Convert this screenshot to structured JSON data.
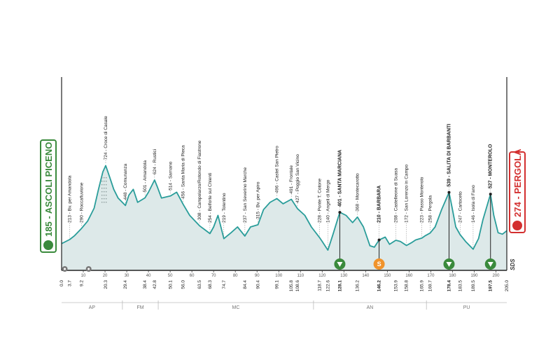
{
  "chart_data": {
    "type": "area",
    "title": "",
    "xlabel": "",
    "ylabel": "",
    "total_km": 205.0,
    "xlim": [
      0,
      205
    ],
    "ylim": [
      0,
      900
    ],
    "grid": false,
    "start": {
      "altitude": "185",
      "name": "ASCOLI PICENO"
    },
    "finish": {
      "altitude": "274",
      "name": "PERGOLA"
    },
    "axis_ticks": [
      10,
      20,
      30,
      40,
      50,
      60,
      70,
      80,
      90,
      100,
      110,
      120,
      130,
      140,
      150,
      160,
      170,
      180,
      190,
      200
    ],
    "km_markers": [
      "0.0",
      "3.7",
      "9.2",
      "20.3",
      "29.4",
      "38.4",
      "42.8",
      "50.1",
      "56.0",
      "63.5",
      "68.3",
      "74.7",
      "84.4",
      "90.4",
      "99.1",
      "105.8",
      "108.6",
      "118.7",
      "122.6",
      "128.1",
      "136.2",
      "146.2",
      "153.9",
      "158.8",
      "165.9",
      "169.7",
      "178.4",
      "183.5",
      "189.5",
      "197.5",
      "205.0"
    ],
    "km_markers_bold": [
      "128.1",
      "146.2",
      "178.4",
      "197.5"
    ],
    "waypoints": [
      {
        "km": 3.7,
        "label": "213 - Bv. per Amandola"
      },
      {
        "km": 9.2,
        "label": "290 - Roccafluvione"
      },
      {
        "km": 20.3,
        "label": "724 - Croce di Casale"
      },
      {
        "km": 29.4,
        "label": "448 - Comunanza"
      },
      {
        "km": 38.4,
        "label": "501 - Amandola"
      },
      {
        "km": 42.8,
        "label": "624 - Rustici"
      },
      {
        "km": 50.1,
        "label": "514 - Sarnano"
      },
      {
        "km": 56.0,
        "label": "456 - Santa Maria di Pieca"
      },
      {
        "km": 63.5,
        "label": "308 - Campolarzo/Rotondo di Fiastrone"
      },
      {
        "km": 68.3,
        "label": "254 - Belforte sul Chienti"
      },
      {
        "km": 74.7,
        "label": "219 - Tolentino"
      },
      {
        "km": 84.4,
        "label": "237 - San Severino Marche"
      },
      {
        "km": 90.4,
        "label": "315 - Bv. per Apiro"
      },
      {
        "km": 99.1,
        "label": "496 - Castel San Pietro"
      },
      {
        "km": 105.8,
        "label": "491 - Frontale"
      },
      {
        "km": 108.6,
        "label": "427 - Poggio San Vicino"
      },
      {
        "km": 118.7,
        "label": "228 - Ponte T. Cotone"
      },
      {
        "km": 122.6,
        "label": "140 - Angeli di Mergo"
      },
      {
        "km": 128.1,
        "label": "401 - SANTA MARCIANA"
      },
      {
        "km": 136.2,
        "label": "368 - Montecarotto"
      },
      {
        "km": 146.2,
        "label": "210 - BARBARA"
      },
      {
        "km": 153.9,
        "label": "208 - Castelleone di Suasa"
      },
      {
        "km": 158.8,
        "label": "172 - San Lorenzo in Campo"
      },
      {
        "km": 165.9,
        "label": "223 - Passo Monterolo"
      },
      {
        "km": 169.7,
        "label": "258 - Pergola"
      },
      {
        "km": 178.4,
        "label": "539 - SALITA DI BARBANTI"
      },
      {
        "km": 183.5,
        "label": "247 - Cartoceto"
      },
      {
        "km": 189.5,
        "label": "146 - Isola di Fano"
      },
      {
        "km": 197.5,
        "label": "527 - MONTEROLO"
      }
    ],
    "profile": [
      [
        0,
        185
      ],
      [
        3.7,
        213
      ],
      [
        6,
        240
      ],
      [
        9.2,
        290
      ],
      [
        12,
        340
      ],
      [
        15,
        430
      ],
      [
        17,
        560
      ],
      [
        19,
        680
      ],
      [
        20.3,
        724
      ],
      [
        22,
        650
      ],
      [
        24,
        560
      ],
      [
        26,
        500
      ],
      [
        29.4,
        448
      ],
      [
        31,
        520
      ],
      [
        33,
        560
      ],
      [
        35,
        470
      ],
      [
        38.4,
        501
      ],
      [
        40,
        540
      ],
      [
        42.8,
        624
      ],
      [
        44,
        580
      ],
      [
        46,
        500
      ],
      [
        50.1,
        514
      ],
      [
        53,
        540
      ],
      [
        56,
        456
      ],
      [
        59,
        380
      ],
      [
        63.5,
        308
      ],
      [
        66,
        280
      ],
      [
        68.3,
        254
      ],
      [
        70,
        300
      ],
      [
        72,
        380
      ],
      [
        74.7,
        219
      ],
      [
        78,
        260
      ],
      [
        81,
        300
      ],
      [
        84.4,
        237
      ],
      [
        87,
        300
      ],
      [
        90.4,
        315
      ],
      [
        93,
        420
      ],
      [
        96,
        470
      ],
      [
        99.1,
        496
      ],
      [
        102,
        460
      ],
      [
        105.8,
        491
      ],
      [
        108.6,
        427
      ],
      [
        112,
        380
      ],
      [
        115,
        300
      ],
      [
        118.7,
        228
      ],
      [
        120,
        200
      ],
      [
        122.6,
        140
      ],
      [
        125,
        250
      ],
      [
        128.1,
        401
      ],
      [
        131,
        380
      ],
      [
        134,
        330
      ],
      [
        136.2,
        368
      ],
      [
        139,
        300
      ],
      [
        142,
        170
      ],
      [
        144,
        160
      ],
      [
        146.2,
        210
      ],
      [
        149,
        230
      ],
      [
        151,
        180
      ],
      [
        153.9,
        208
      ],
      [
        156,
        200
      ],
      [
        158.8,
        172
      ],
      [
        161,
        190
      ],
      [
        163,
        210
      ],
      [
        165.9,
        223
      ],
      [
        167.5,
        240
      ],
      [
        169.7,
        258
      ],
      [
        172,
        300
      ],
      [
        175,
        420
      ],
      [
        178.4,
        539
      ],
      [
        180,
        420
      ],
      [
        181.5,
        300
      ],
      [
        183.5,
        247
      ],
      [
        186,
        200
      ],
      [
        189.5,
        146
      ],
      [
        192,
        220
      ],
      [
        194,
        350
      ],
      [
        197.5,
        527
      ],
      [
        199,
        380
      ],
      [
        201,
        260
      ],
      [
        203,
        250
      ],
      [
        205,
        274
      ]
    ],
    "climb_markers": [
      {
        "km": 128.1,
        "kind": "gpm"
      },
      {
        "km": 146.2,
        "kind": "sprint",
        "label": "S"
      },
      {
        "km": 178.4,
        "kind": "gpm"
      },
      {
        "km": 197.5,
        "kind": "gpm"
      }
    ],
    "feed_markers": [
      {
        "km": 0.5
      },
      {
        "km": 11.5
      }
    ],
    "regions": [
      {
        "name": "AP",
        "from": 0,
        "to": 28
      },
      {
        "name": "FM",
        "from": 28,
        "to": 44.5
      },
      {
        "name": "MC",
        "from": 44.5,
        "to": 116
      },
      {
        "name": "AN",
        "from": 116,
        "to": 168
      },
      {
        "name": "PU",
        "from": 168,
        "to": 205
      }
    ],
    "logo": "SDS",
    "colors": {
      "area": "#dde9e9",
      "line": "#2a9d9a",
      "start": "#3a8a3c",
      "finish": "#d32f2f",
      "gpm": "#3a8a3c",
      "sprint": "#f0932b"
    }
  }
}
